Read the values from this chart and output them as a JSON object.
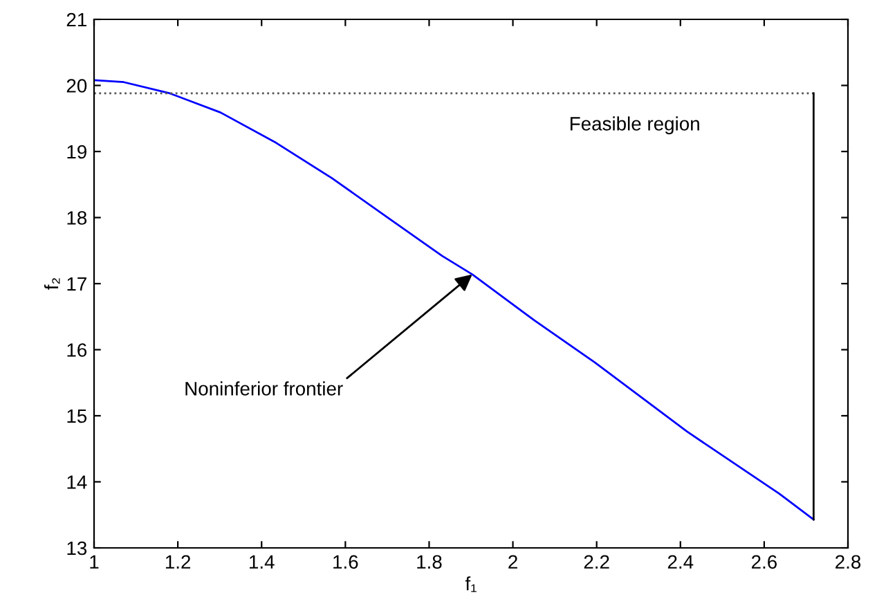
{
  "chart_data": {
    "type": "line",
    "xlabel": "f₁",
    "ylabel": "f₂",
    "xlim": [
      1,
      2.8
    ],
    "ylim": [
      13,
      21
    ],
    "xticks": [
      1,
      1.2,
      1.4,
      1.6,
      1.8,
      2,
      2.2,
      2.4,
      2.6,
      2.8
    ],
    "yticks": [
      13,
      14,
      15,
      16,
      17,
      18,
      19,
      20,
      21
    ],
    "grid": false,
    "legend": false,
    "marker": "none",
    "series": [
      {
        "color": "#0000ff",
        "line_style": "solid",
        "x": [
          1.0,
          1.071,
          1.181,
          1.302,
          1.435,
          1.567,
          1.699,
          1.831,
          1.903,
          2.052,
          2.195,
          2.416,
          2.636,
          2.718
        ],
        "values": [
          20.08,
          20.05,
          19.88,
          19.59,
          19.13,
          18.6,
          18.01,
          17.42,
          17.14,
          16.44,
          15.81,
          14.76,
          13.82,
          13.43
        ]
      },
      {
        "color": "#555555",
        "line_style": "dotted",
        "x": [
          1.0,
          2.718
        ],
        "values": [
          19.88,
          19.88
        ]
      },
      {
        "color": "#000000",
        "line_style": "solid",
        "x": [
          2.718,
          2.718
        ],
        "values": [
          13.43,
          19.88
        ]
      }
    ],
    "annotations": [
      "Feasible region",
      {
        "text": "Noninferior frontier",
        "x": 1.903,
        "y": 17.14
      }
    ]
  }
}
